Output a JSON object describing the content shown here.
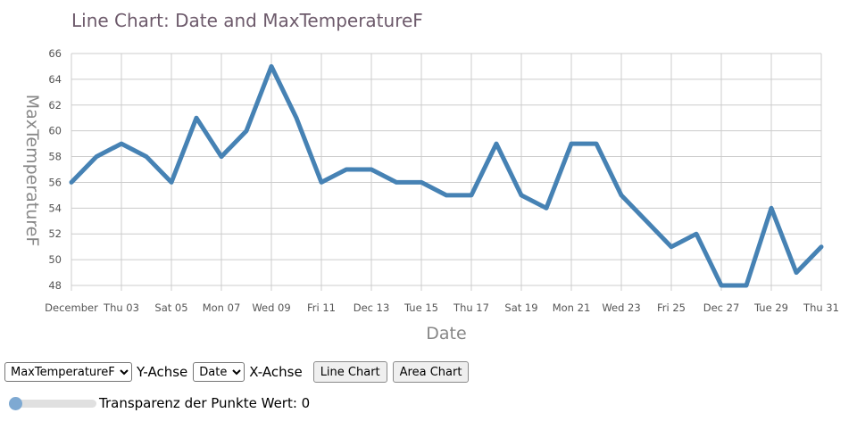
{
  "chart_data": {
    "type": "line",
    "title": "Line Chart: Date and MaxTemperatureF",
    "xlabel": "Date",
    "ylabel": "MaxTemperatureF",
    "x": [
      "Dec 01",
      "Dec 02",
      "Dec 03",
      "Dec 04",
      "Dec 05",
      "Dec 06",
      "Dec 07",
      "Dec 08",
      "Dec 09",
      "Dec 10",
      "Dec 11",
      "Dec 12",
      "Dec 13",
      "Dec 14",
      "Dec 15",
      "Dec 16",
      "Dec 17",
      "Dec 18",
      "Dec 19",
      "Dec 20",
      "Dec 21",
      "Dec 22",
      "Dec 23",
      "Dec 24",
      "Dec 25",
      "Dec 26",
      "Dec 27",
      "Dec 28",
      "Dec 29",
      "Dec 30",
      "Dec 31"
    ],
    "values": [
      56,
      58,
      59,
      58,
      56,
      61,
      58,
      60,
      65,
      61,
      56,
      57,
      57,
      56,
      56,
      55,
      55,
      59,
      55,
      54,
      59,
      59,
      55,
      53,
      51,
      52,
      48,
      48,
      54,
      49,
      51
    ],
    "ylim": [
      48,
      66
    ],
    "yticks": [
      "48",
      "50",
      "52",
      "54",
      "56",
      "58",
      "60",
      "62",
      "64",
      "66"
    ],
    "xticks": [
      "December",
      "Thu 03",
      "Sat 05",
      "Mon 07",
      "Wed 09",
      "Fri 11",
      "Dec 13",
      "Tue 15",
      "Thu 17",
      "Sat 19",
      "Mon 21",
      "Wed 23",
      "Fri 25",
      "Dec 27",
      "Tue 29",
      "Thu 31"
    ],
    "grid": true,
    "line_color": "#4682b4"
  },
  "controls": {
    "y_select_value": "MaxTemperatureF",
    "y_label": "Y-Achse",
    "x_select_value": "Date",
    "x_label": "X-Achse",
    "line_button": "Line Chart",
    "area_button": "Area Chart",
    "slider_label": "Transparenz der Punkte Wert: 0",
    "slider_value": 0
  }
}
